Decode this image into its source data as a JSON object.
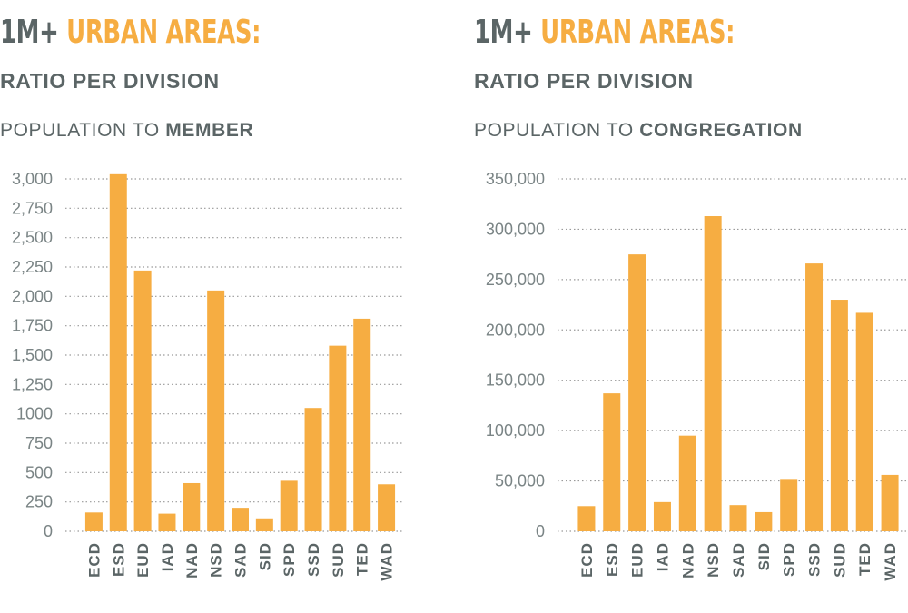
{
  "colors": {
    "bar": "#f6ad42",
    "title_dark": "#5b6566",
    "title_accent": "#f6ad42",
    "grid": "#9a9a9a",
    "text": "#5b6566"
  },
  "left": {
    "title_part1": "1M+",
    "title_part2": "URBAN AREAS:",
    "subtitle": "RATIO PER DIVISION",
    "metric_prefix": "POPULATION TO",
    "metric_bold": "MEMBER"
  },
  "right": {
    "title_part1": "1M+",
    "title_part2": "URBAN AREAS:",
    "subtitle": "RATIO PER DIVISION",
    "metric_prefix": "POPULATION TO",
    "metric_bold": "CONGREGATION"
  },
  "chart_data": [
    {
      "type": "bar",
      "categories": [
        "ECD",
        "ESD",
        "EUD",
        "IAD",
        "NAD",
        "NSD",
        "SAD",
        "SID",
        "SPD",
        "SSD",
        "SUD",
        "TED",
        "WAD"
      ],
      "values": [
        160,
        3040,
        2220,
        150,
        410,
        2050,
        200,
        110,
        430,
        1050,
        1580,
        1810,
        400
      ],
      "yticks": [
        "0",
        "250",
        "500",
        "750",
        "1000",
        "1,250",
        "1,500",
        "1,750",
        "2,000",
        "2,250",
        "2,500",
        "2,750",
        "3,000"
      ],
      "ylim": [
        0,
        3000
      ],
      "grid": true,
      "title": "1M+ URBAN AREAS:",
      "subtitle": "RATIO PER DIVISION",
      "ylabel": "POPULATION TO MEMBER"
    },
    {
      "type": "bar",
      "categories": [
        "ECD",
        "ESD",
        "EUD",
        "IAD",
        "NAD",
        "NSD",
        "SAD",
        "SID",
        "SPD",
        "SSD",
        "SUD",
        "TED",
        "WAD"
      ],
      "values": [
        25000,
        137000,
        275000,
        29000,
        95000,
        313000,
        26000,
        19000,
        52000,
        266000,
        230000,
        217000,
        56000
      ],
      "yticks": [
        "0",
        "50,000",
        "100,000",
        "150,000",
        "200,000",
        "250,000",
        "300,000",
        "350,000"
      ],
      "ylim": [
        0,
        350000
      ],
      "grid": true,
      "title": "1M+ URBAN AREAS:",
      "subtitle": "RATIO PER DIVISION",
      "ylabel": "POPULATION TO CONGREGATION"
    }
  ]
}
